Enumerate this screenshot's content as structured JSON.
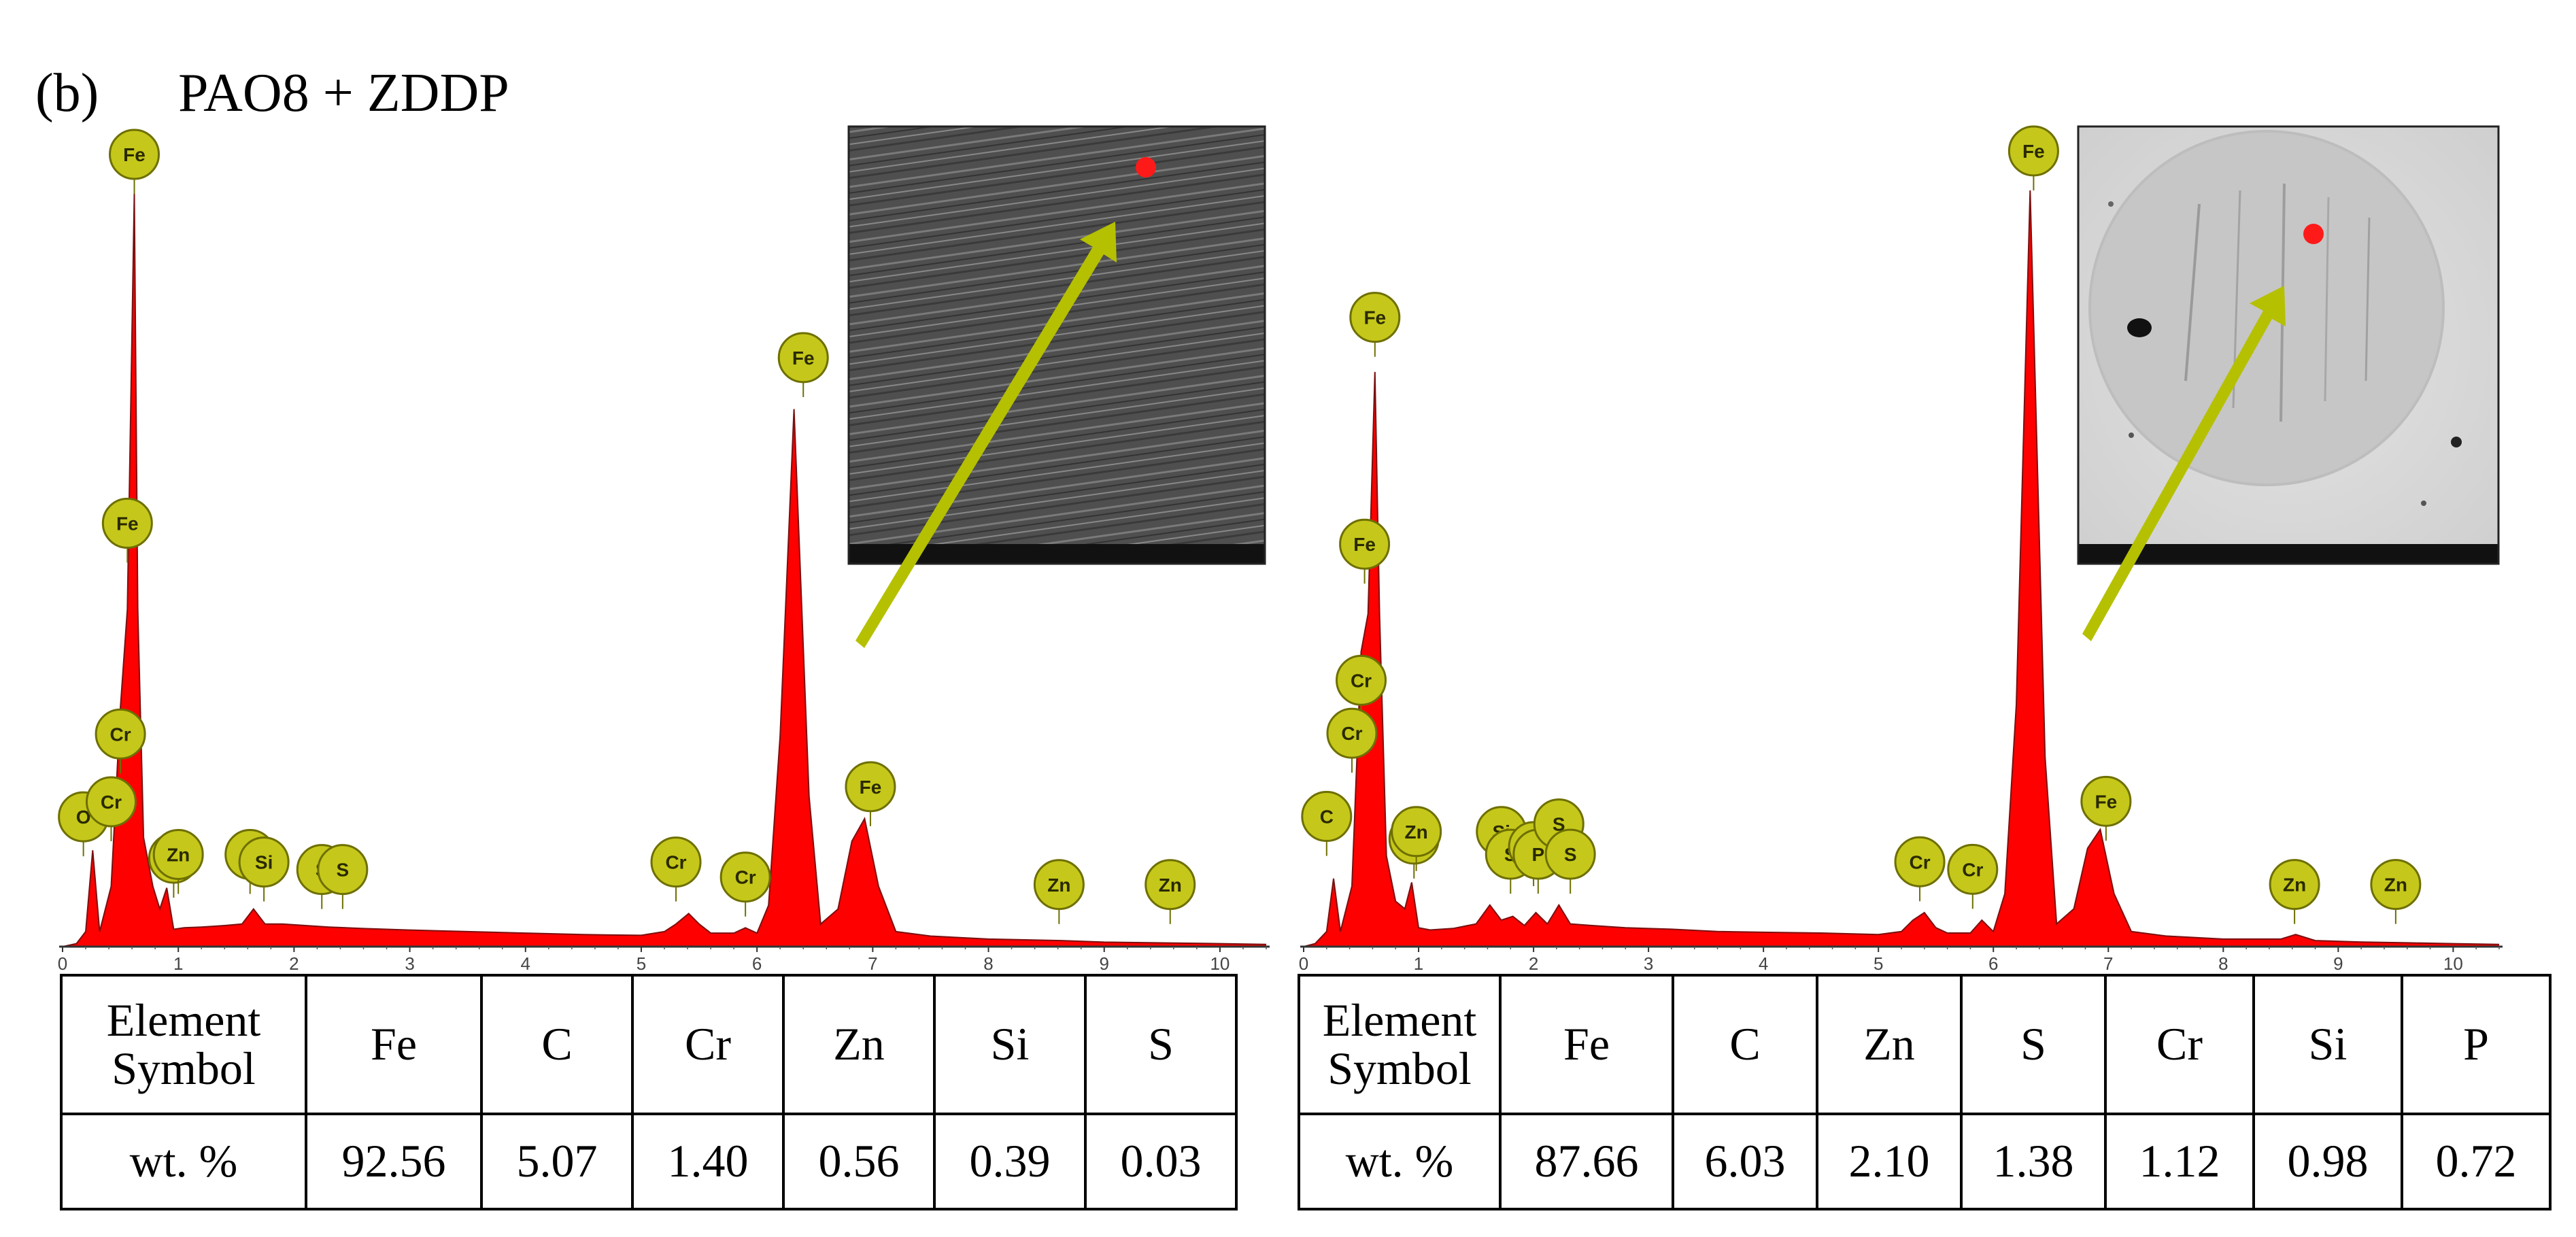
{
  "figure": {
    "panel_label": "(b)",
    "title": "PAO8 + ZDDP"
  },
  "chart_data": [
    {
      "type": "area",
      "title": "",
      "xlabel": "",
      "ylabel": "",
      "xlim": [
        0,
        10.4
      ],
      "x_ticks": [
        "0",
        "1",
        "2",
        "3",
        "4",
        "5",
        "6",
        "7",
        "8",
        "9",
        "10"
      ],
      "series": [
        {
          "x": [
            0.0,
            0.12,
            0.2,
            0.26,
            0.32,
            0.42,
            0.5,
            0.56,
            0.62,
            0.65,
            0.7,
            0.78,
            0.84,
            0.9,
            0.96,
            1.05,
            1.2,
            1.4,
            1.55,
            1.65,
            1.75,
            1.9,
            2.1,
            2.3,
            2.6,
            3.0,
            3.5,
            4.0,
            4.5,
            5.0,
            5.2,
            5.3,
            5.41,
            5.5,
            5.6,
            5.8,
            5.9,
            6.0,
            6.1,
            6.2,
            6.32,
            6.45,
            6.55,
            6.7,
            6.82,
            6.93,
            7.05,
            7.2,
            7.5,
            8.0,
            8.63,
            9.0,
            9.5,
            10.0,
            10.4
          ],
          "y": [
            0,
            0.4,
            2.0,
            12.8,
            2.0,
            8.0,
            31.8,
            44.8,
            100.0,
            44.8,
            14.5,
            8.0,
            5.0,
            7.8,
            2.3,
            2.5,
            2.6,
            2.8,
            3.0,
            5.0,
            3.0,
            3.0,
            2.8,
            2.6,
            2.4,
            2.2,
            2.0,
            1.8,
            1.6,
            1.5,
            2.0,
            3.0,
            4.4,
            3.0,
            1.8,
            1.8,
            2.5,
            1.8,
            5.5,
            28.0,
            71.4,
            20.0,
            3.0,
            5.0,
            14.0,
            17.0,
            8.0,
            2.0,
            1.4,
            1.0,
            0.8,
            0.6,
            0.5,
            0.4,
            0.3
          ]
        }
      ],
      "element_labels": [
        {
          "label": "Fe",
          "x": 0.62,
          "y": 100
        },
        {
          "label": "Fe",
          "x": 0.56,
          "y": 51
        },
        {
          "label": "Cr",
          "x": 0.5,
          "y": 23
        },
        {
          "label": "O",
          "x": 0.18,
          "y": 12
        },
        {
          "label": "Cr",
          "x": 0.42,
          "y": 14
        },
        {
          "label": "Zn",
          "x": 0.96,
          "y": 6.5
        },
        {
          "label": "Zn",
          "x": 1.0,
          "y": 7
        },
        {
          "label": "Si",
          "x": 1.62,
          "y": 7
        },
        {
          "label": "Si",
          "x": 1.74,
          "y": 6
        },
        {
          "label": "S",
          "x": 2.24,
          "y": 5
        },
        {
          "label": "S",
          "x": 2.42,
          "y": 5
        },
        {
          "label": "Cr",
          "x": 5.3,
          "y": 6
        },
        {
          "label": "Cr",
          "x": 5.9,
          "y": 4
        },
        {
          "label": "Fe",
          "x": 6.4,
          "y": 73
        },
        {
          "label": "Fe",
          "x": 6.98,
          "y": 16
        },
        {
          "label": "Zn",
          "x": 8.61,
          "y": 3
        },
        {
          "label": "Zn",
          "x": 9.57,
          "y": 3
        }
      ]
    },
    {
      "type": "area",
      "title": "",
      "xlabel": "",
      "ylabel": "",
      "xlim": [
        0,
        10.4
      ],
      "x_ticks": [
        "0",
        "1",
        "2",
        "3",
        "4",
        "5",
        "6",
        "7",
        "8",
        "9",
        "10"
      ],
      "series": [
        {
          "x": [
            0.0,
            0.1,
            0.2,
            0.26,
            0.32,
            0.42,
            0.5,
            0.56,
            0.62,
            0.66,
            0.72,
            0.8,
            0.88,
            0.94,
            1.0,
            1.1,
            1.3,
            1.5,
            1.62,
            1.72,
            1.82,
            1.92,
            2.02,
            2.12,
            2.22,
            2.32,
            2.5,
            2.8,
            3.2,
            3.6,
            4.0,
            4.5,
            5.0,
            5.2,
            5.3,
            5.4,
            5.5,
            5.6,
            5.8,
            5.9,
            6.0,
            6.1,
            6.2,
            6.32,
            6.45,
            6.55,
            6.7,
            6.82,
            6.93,
            7.05,
            7.2,
            7.5,
            8.0,
            8.5,
            8.63,
            8.8,
            9.2,
            9.6,
            10.0,
            10.4
          ],
          "y": [
            0,
            0.4,
            2.0,
            9.0,
            2.0,
            8.0,
            39.0,
            44.0,
            76.0,
            44.0,
            12.0,
            6.0,
            5.0,
            8.5,
            2.5,
            2.2,
            2.4,
            3.0,
            5.5,
            3.5,
            4.0,
            2.8,
            4.5,
            3.0,
            5.5,
            3.0,
            2.8,
            2.5,
            2.3,
            2.0,
            1.9,
            1.8,
            1.6,
            2.0,
            3.5,
            4.5,
            2.5,
            1.8,
            1.8,
            3.5,
            2.0,
            7.0,
            32.0,
            100.0,
            25.0,
            3.0,
            5.0,
            13.0,
            15.5,
            7.0,
            2.0,
            1.4,
            1.0,
            1.0,
            1.6,
            0.8,
            0.6,
            0.5,
            0.4,
            0.3
          ]
        }
      ],
      "element_labels": [
        {
          "label": "Fe",
          "x": 6.35,
          "y": 100
        },
        {
          "label": "Fe",
          "x": 0.62,
          "y": 78
        },
        {
          "label": "Fe",
          "x": 0.53,
          "y": 48
        },
        {
          "label": "Cr",
          "x": 0.5,
          "y": 30
        },
        {
          "label": "Cr",
          "x": 0.42,
          "y": 23
        },
        {
          "label": "C",
          "x": 0.2,
          "y": 12
        },
        {
          "label": "Zn",
          "x": 0.96,
          "y": 9
        },
        {
          "label": "Zn",
          "x": 0.98,
          "y": 10
        },
        {
          "label": "Si",
          "x": 1.72,
          "y": 10
        },
        {
          "label": "S",
          "x": 1.8,
          "y": 7
        },
        {
          "label": "P",
          "x": 2.0,
          "y": 8
        },
        {
          "label": "P",
          "x": 2.04,
          "y": 7
        },
        {
          "label": "S",
          "x": 2.22,
          "y": 11
        },
        {
          "label": "S",
          "x": 2.32,
          "y": 7
        },
        {
          "label": "Cr",
          "x": 5.36,
          "y": 6
        },
        {
          "label": "Cr",
          "x": 5.82,
          "y": 5
        },
        {
          "label": "Fe",
          "x": 6.98,
          "y": 14
        },
        {
          "label": "Zn",
          "x": 8.62,
          "y": 3
        },
        {
          "label": "Zn",
          "x": 9.5,
          "y": 3
        }
      ]
    }
  ],
  "tables": [
    {
      "row_header_1": "Element",
      "row_header_2": "Symbol",
      "elements": [
        "Fe",
        "C",
        "Cr",
        "Zn",
        "Si",
        "S"
      ],
      "value_label": "wt. %",
      "values": [
        "92.56",
        "5.07",
        "1.40",
        "0.56",
        "0.39",
        "0.03"
      ]
    },
    {
      "row_header_1": "Element",
      "row_header_2": "Symbol",
      "elements": [
        "Fe",
        "C",
        "Zn",
        "S",
        "Cr",
        "Si",
        "P"
      ],
      "value_label": "wt. %",
      "values": [
        "87.66",
        "6.03",
        "2.10",
        "1.38",
        "1.12",
        "0.98",
        "0.72"
      ]
    }
  ],
  "colors": {
    "spectrum_fill": "#ff0000",
    "spectrum_outline": "#7a1010",
    "badge_fill": "#c5c81a",
    "badge_stroke": "#6e6f00",
    "arrow": "#b5c000",
    "marker": "#ff1a1a"
  }
}
